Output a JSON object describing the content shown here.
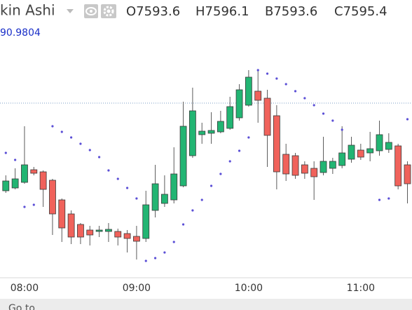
{
  "chart_data": {
    "type": "candlestick",
    "title": "kin Ashi",
    "header_values": [
      {
        "label": "O",
        "value": 7593.6
      },
      {
        "label": "H",
        "value": 7596.1
      },
      {
        "label": "B",
        "value": 7593.6
      },
      {
        "label": "C",
        "value": 7595.4
      }
    ],
    "indicator_value": 90.9804,
    "footer": "Go to",
    "categories": [
      null,
      null,
      "08:00",
      null,
      null,
      null,
      null,
      null,
      null,
      null,
      null,
      null,
      null,
      null,
      "09:00",
      null,
      null,
      null,
      null,
      null,
      null,
      null,
      null,
      null,
      null,
      null,
      "10:00",
      null,
      null,
      null,
      null,
      null,
      null,
      null,
      null,
      null,
      null,
      null,
      "11:00",
      null,
      null,
      null,
      null,
      null
    ],
    "open": [
      7582.8,
      7583.2,
      7584.0,
      7585.8,
      7585.5,
      7584.3,
      7581.5,
      7579.5,
      7578.0,
      7577.2,
      7577.0,
      7577.0,
      7577.0,
      7576.7,
      7576.3,
      7576.0,
      7580.0,
      7581.0,
      7581.5,
      7583.5,
      7587.8,
      7590.8,
      7591.0,
      7591.2,
      7591.7,
      7593.2,
      7595.0,
      7597.0,
      7596.0,
      7593.5,
      7588.0,
      7587.8,
      7586.5,
      7586.0,
      7585.4,
      7586.0,
      7586.4,
      7587.3,
      7588.6,
      7588.2,
      7588.5,
      7588.7,
      7589.2,
      7586.5
    ],
    "high": [
      7585.0,
      7586.0,
      7592.0,
      7586.2,
      7585.7,
      7584.5,
      7581.7,
      7580.0,
      7578.2,
      7577.8,
      7577.8,
      7578.2,
      7577.4,
      7577.2,
      7577.8,
      7582.8,
      7586.5,
      7585.0,
      7589.0,
      7595.5,
      7597.5,
      7592.5,
      7594.0,
      7594.2,
      7596.2,
      7598.0,
      7600.0,
      7600.0,
      7597.2,
      7595.0,
      7589.5,
      7588.2,
      7587.0,
      7587.0,
      7590.5,
      7587.5,
      7592.0,
      7590.5,
      7589.5,
      7591.2,
      7592.8,
      7591.0,
      7589.5,
      7587.0
    ],
    "low": [
      7582.5,
      7583.0,
      7583.8,
      7585.0,
      7580.5,
      7576.5,
      7575.5,
      7575.2,
      7575.2,
      7575.0,
      7576.2,
      7575.5,
      7575.0,
      7574.0,
      7573.0,
      7575.5,
      7579.0,
      7580.5,
      7581.0,
      7583.3,
      7587.5,
      7589.5,
      7589.5,
      7591.0,
      7591.5,
      7592.8,
      7594.8,
      7592.5,
      7586.2,
      7583.0,
      7584.2,
      7584.5,
      7584.5,
      7581.5,
      7585.0,
      7585.2,
      7586.0,
      7586.8,
      7587.2,
      7587.0,
      7587.8,
      7588.2,
      7583.0,
      7581.0
    ],
    "close": [
      7584.2,
      7584.5,
      7586.5,
      7585.3,
      7583.0,
      7579.5,
      7577.5,
      7576.2,
      7576.2,
      7576.5,
      7577.2,
      7577.3,
      7576.2,
      7576.0,
      7575.6,
      7580.8,
      7583.8,
      7582.3,
      7585.2,
      7592.0,
      7594.2,
      7591.3,
      7591.4,
      7592.7,
      7594.8,
      7597.2,
      7599.0,
      7595.7,
      7590.7,
      7585.5,
      7585.2,
      7585.0,
      7585.3,
      7584.8,
      7587.0,
      7587.0,
      7588.2,
      7589.3,
      7587.6,
      7588.8,
      7590.8,
      7589.7,
      7583.5,
      7583.8
    ],
    "sar_values": [
      7588.2,
      7587.2,
      7580.5,
      7580.8,
      null,
      7592.0,
      7591.2,
      7590.4,
      7589.5,
      7588.6,
      7587.6,
      7585.7,
      7584.5,
      7583.2,
      7581.7,
      7572.8,
      7573.2,
      7574.0,
      7575.5,
      7578.0,
      7580.0,
      7581.5,
      7583.5,
      7585.2,
      7587.0,
      7588.5,
      7590.4,
      7600.0,
      7599.5,
      7598.8,
      7598.0,
      7597.0,
      7596.0,
      7595.0,
      7593.8,
      7592.8,
      7591.5,
      null,
      null,
      null,
      7581.5,
      7581.7,
      null,
      7593.0
    ],
    "price_line": 7595.3,
    "ylim": [
      7570,
      7610
    ],
    "up_color": "#22b573",
    "down_color": "#f0625b",
    "sar_color": "#5b4fd6",
    "price_line_color": "#7a9cc6"
  }
}
